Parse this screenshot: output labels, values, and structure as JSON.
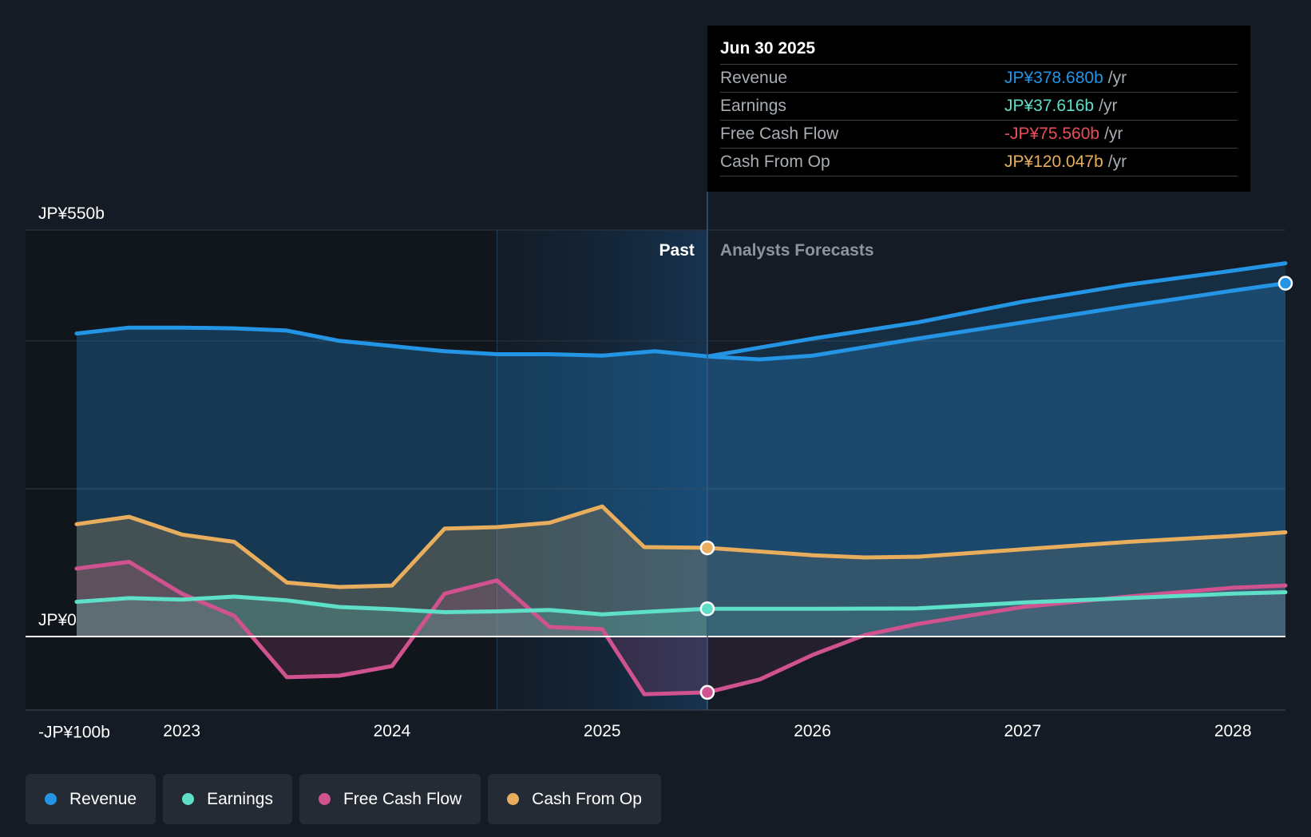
{
  "chart_data": {
    "type": "line",
    "title": "",
    "x_range": [
      2022.5,
      2028.25
    ],
    "y_range": [
      -100,
      550
    ],
    "y_axis_labels": [
      {
        "value": 550,
        "label": "JP¥550b"
      },
      {
        "value": 0,
        "label": "JP¥0"
      },
      {
        "value": -100,
        "label": "-JP¥100b"
      }
    ],
    "x_ticks": [
      {
        "value": 2023,
        "label": "2023"
      },
      {
        "value": 2024,
        "label": "2024"
      },
      {
        "value": 2025,
        "label": "2025"
      },
      {
        "value": 2026,
        "label": "2026"
      },
      {
        "value": 2027,
        "label": "2027"
      },
      {
        "value": 2028,
        "label": "2028"
      }
    ],
    "gridlines": [
      550,
      400,
      200
    ],
    "past_label": "Past",
    "forecast_label": "Analysts Forecasts",
    "divider_x": 2025.5,
    "highlight_start_x": 2024.5,
    "series": [
      {
        "name": "Revenue",
        "color": "#2494e4",
        "fill": true,
        "points": [
          [
            2022.5,
            410
          ],
          [
            2022.75,
            418
          ],
          [
            2023,
            418
          ],
          [
            2023.25,
            417
          ],
          [
            2023.5,
            414
          ],
          [
            2023.75,
            400
          ],
          [
            2024,
            393
          ],
          [
            2024.25,
            386
          ],
          [
            2024.5,
            382
          ],
          [
            2024.75,
            382
          ],
          [
            2025,
            380
          ],
          [
            2025.25,
            386
          ],
          [
            2025.5,
            379
          ],
          [
            2025.75,
            375
          ],
          [
            2026,
            380
          ],
          [
            2026.5,
            403
          ],
          [
            2027,
            425
          ],
          [
            2027.5,
            447
          ],
          [
            2028,
            468
          ],
          [
            2028.25,
            478
          ]
        ],
        "forecast": [
          [
            2025.5,
            379
          ],
          [
            2026,
            403
          ],
          [
            2026.5,
            425
          ],
          [
            2027,
            453
          ],
          [
            2027.5,
            476
          ],
          [
            2028,
            495
          ],
          [
            2028.25,
            505
          ]
        ]
      },
      {
        "name": "Cash From Op",
        "color": "#e8ae5d",
        "fill": true,
        "points": [
          [
            2022.5,
            152
          ],
          [
            2022.75,
            162
          ],
          [
            2023,
            138
          ],
          [
            2023.25,
            128
          ],
          [
            2023.5,
            73
          ],
          [
            2023.75,
            67
          ],
          [
            2024,
            69
          ],
          [
            2024.25,
            146
          ],
          [
            2024.5,
            148
          ],
          [
            2024.75,
            154
          ],
          [
            2025,
            176
          ],
          [
            2025.2,
            121
          ],
          [
            2025.5,
            120
          ]
        ],
        "forecast": [
          [
            2025.5,
            120
          ],
          [
            2026,
            110
          ],
          [
            2026.25,
            107
          ],
          [
            2026.5,
            108
          ],
          [
            2027,
            118
          ],
          [
            2027.5,
            128
          ],
          [
            2028,
            136
          ],
          [
            2028.25,
            141
          ]
        ]
      },
      {
        "name": "Free Cash Flow",
        "color": "#d0528f",
        "fill": true,
        "points": [
          [
            2022.5,
            92
          ],
          [
            2022.75,
            101
          ],
          [
            2023,
            58
          ],
          [
            2023.25,
            28
          ],
          [
            2023.5,
            -55
          ],
          [
            2023.75,
            -53
          ],
          [
            2024,
            -40
          ],
          [
            2024.25,
            58
          ],
          [
            2024.5,
            76
          ],
          [
            2024.75,
            13
          ],
          [
            2025,
            10
          ],
          [
            2025.2,
            -78
          ],
          [
            2025.5,
            -75.56
          ]
        ],
        "forecast": [
          [
            2025.5,
            -75.56
          ],
          [
            2025.75,
            -58
          ],
          [
            2026,
            -25
          ],
          [
            2026.25,
            2
          ],
          [
            2026.5,
            17
          ],
          [
            2027,
            40
          ],
          [
            2027.5,
            54
          ],
          [
            2028,
            66
          ],
          [
            2028.25,
            69
          ]
        ]
      },
      {
        "name": "Earnings",
        "color": "#5ddfc8",
        "fill": true,
        "points": [
          [
            2022.5,
            47
          ],
          [
            2022.75,
            52
          ],
          [
            2023,
            50
          ],
          [
            2023.25,
            54
          ],
          [
            2023.5,
            49
          ],
          [
            2023.75,
            40
          ],
          [
            2024,
            37
          ],
          [
            2024.25,
            33
          ],
          [
            2024.5,
            34
          ],
          [
            2024.75,
            36
          ],
          [
            2025,
            30
          ],
          [
            2025.25,
            34
          ],
          [
            2025.5,
            37.6
          ]
        ],
        "forecast": [
          [
            2025.5,
            37.6
          ],
          [
            2026,
            37.6
          ],
          [
            2026.5,
            38
          ],
          [
            2027,
            46
          ],
          [
            2027.5,
            52
          ],
          [
            2028,
            58
          ],
          [
            2028.25,
            60
          ]
        ]
      }
    ]
  },
  "tooltip": {
    "date": "Jun 30 2025",
    "rows": [
      {
        "label": "Revenue",
        "value": "JP¥378.680b",
        "unit": "/yr",
        "color": "#2494e4"
      },
      {
        "label": "Earnings",
        "value": "JP¥37.616b",
        "unit": "/yr",
        "color": "#5ddfc8"
      },
      {
        "label": "Free Cash Flow",
        "value": "-JP¥75.560b",
        "unit": "/yr",
        "color": "#e84e58"
      },
      {
        "label": "Cash From Op",
        "value": "JP¥120.047b",
        "unit": "/yr",
        "color": "#e8ae5d"
      }
    ]
  },
  "legend": [
    {
      "label": "Revenue",
      "color": "#2494e4"
    },
    {
      "label": "Earnings",
      "color": "#5ddfc8"
    },
    {
      "label": "Free Cash Flow",
      "color": "#d0528f"
    },
    {
      "label": "Cash From Op",
      "color": "#e8ae5d"
    }
  ]
}
